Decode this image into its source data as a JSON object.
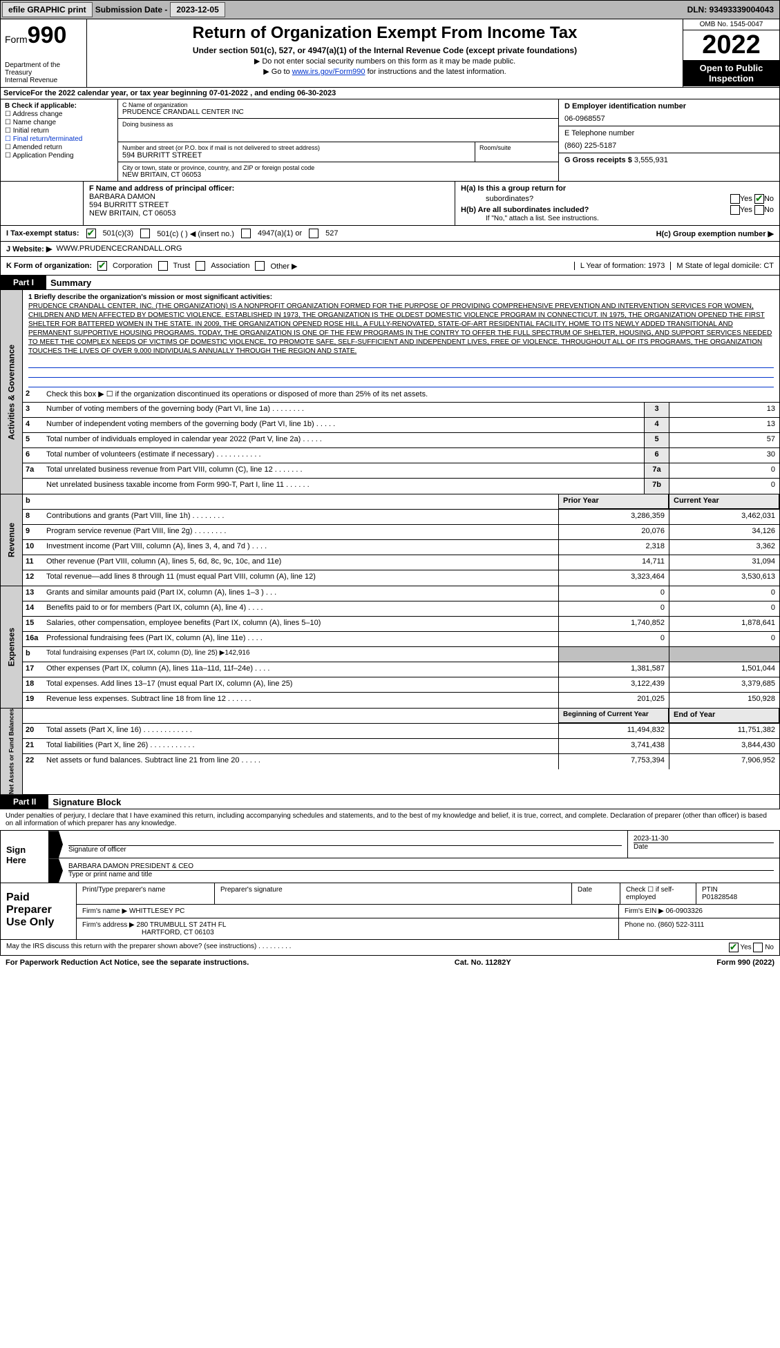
{
  "topbar": {
    "efile": "efile GRAPHIC print",
    "subdate_lbl": "Submission Date -",
    "subdate": "2023-12-05",
    "dln": "DLN: 93493339004043"
  },
  "header": {
    "form_word": "Form",
    "form_num": "990",
    "dept": "Department of the Treasury",
    "irs": "Internal Revenue",
    "title": "Return of Organization Exempt From Income Tax",
    "subtitle": "Under section 501(c), 527, or 4947(a)(1) of the Internal Revenue Code (except private foundations)",
    "note1": "▶ Do not enter social security numbers on this form as it may be made public.",
    "note2_pre": "▶ Go to ",
    "note2_link": "www.irs.gov/Form990",
    "note2_post": " for instructions and the latest information.",
    "omb": "OMB No. 1545-0047",
    "year": "2022",
    "inspect": "Open to Public Inspection"
  },
  "A": {
    "text": "For the 2022 calendar year, or tax year beginning 07-01-2022    , and ending 06-30-2023"
  },
  "B": {
    "title": "B Check if applicable:",
    "items": [
      "Address change",
      "Name change",
      "Initial return",
      "Final return/terminated",
      "Amended return",
      "Application Pending"
    ]
  },
  "C": {
    "name_lbl": "C Name of organization",
    "name": "PRUDENCE CRANDALL CENTER INC",
    "dba_lbl": "Doing business as",
    "addr_lbl": "Number and street (or P.O. box if mail is not delivered to street address)",
    "addr": "594 BURRITT STREET",
    "room_lbl": "Room/suite",
    "city_lbl": "City or town, state or province, country, and ZIP or foreign postal code",
    "city": "NEW BRITAIN, CT  06053"
  },
  "D": {
    "lbl": "D Employer identification number",
    "val": "06-0968557"
  },
  "E": {
    "lbl": "E Telephone number",
    "val": "(860) 225-5187"
  },
  "G": {
    "lbl": "G Gross receipts $",
    "val": "3,555,931"
  },
  "F": {
    "lbl": "F  Name and address of principal officer:",
    "name": "BARBARA DAMON",
    "addr1": "594 BURRITT STREET",
    "addr2": "NEW BRITAIN, CT  06053"
  },
  "H": {
    "a": "H(a)  Is this a group return for",
    "a2": "subordinates?",
    "b": "H(b)  Are all subordinates included?",
    "bnote": "If \"No,\" attach a list. See instructions.",
    "c": "H(c)  Group exemption number ▶",
    "yes": "Yes",
    "no": "No"
  },
  "I": {
    "lbl": "I    Tax-exempt status:",
    "o1": "501(c)(3)",
    "o2": "501(c) (  ) ◀ (insert no.)",
    "o3": "4947(a)(1) or",
    "o4": "527"
  },
  "J": {
    "lbl": "J   Website: ▶",
    "val": "WWW.PRUDENCECRANDALL.ORG"
  },
  "K": {
    "lbl": "K Form of organization:",
    "o1": "Corporation",
    "o2": "Trust",
    "o3": "Association",
    "o4": "Other ▶",
    "L": "L Year of formation: 1973",
    "M": "M State of legal domicile: CT"
  },
  "part1": {
    "tag": "Part I",
    "title": "Summary"
  },
  "mission_lbl": "1    Briefly describe the organization's mission or most significant activities:",
  "mission": "PRUDENCE CRANDALL CENTER, INC. (THE ORGANIZATION) IS A NONPROFIT ORGANIZATION FORMED FOR THE PURPOSE OF PROVIDING COMPREHENSIVE PREVENTION AND INTERVENTION SERVICES FOR WOMEN, CHILDREN AND MEN AFFECTED BY DOMESTIC VIOLENCE. ESTABLISHED IN 1973, THE ORGANIZATION IS THE OLDEST DOMESTIC VIOLENCE PROGRAM IN CONNECTICUT. IN 1975, THE ORGANIZATION OPENED THE FIRST SHELTER FOR BATTERED WOMEN IN THE STATE. IN 2009, THE ORGANIZATION OPENED ROSE HILL, A FULLY-RENOVATED, STATE-OF-ART RESIDENTIAL FACILITY, HOME TO ITS NEWLY ADDED TRANSITIONAL AND PERMANENT SUPPORTIVE HOUSING PROGRAMS. TODAY, THE ORGANIZATION IS ONE OF THE FEW PROGRAMS IN THE CONTRY TO OFFER THE FULL SPECTRUM OF SHELTER, HOUSING, AND SUPPORT SERVICES NEEDED TO MEET THE COMPLEX NEEDS OF VICTIMS OF DOMESTIC VIOLENCE, TO PROMOTE SAFE, SELF-SUFFICIENT AND INDEPENDENT LIVES, FREE OF VIOLENCE. THROUGHOUT ALL OF ITS PROGRAMS, THE ORGANIZATION TOUCHES THE LIVES OF OVER 9,000 INDIVIDUALS ANNUALLY THROUGH THE REGION AND STATE.",
  "lines_gov": [
    {
      "n": "2",
      "t": "Check this box ▶ ☐ if the organization discontinued its operations or disposed of more than 25% of its net assets."
    },
    {
      "n": "3",
      "t": "Number of voting members of the governing body (Part VI, line 1a)  .    .    .    .    .    .    .    .",
      "box": "3",
      "v": "13"
    },
    {
      "n": "4",
      "t": "Number of independent voting members of the governing body (Part VI, line 1b)    .    .    .    .    .",
      "box": "4",
      "v": "13"
    },
    {
      "n": "5",
      "t": "Total number of individuals employed in calendar year 2022 (Part V, line 2a)    .    .    .    .    .",
      "box": "5",
      "v": "57"
    },
    {
      "n": "6",
      "t": "Total number of volunteers (estimate if necessary)   .    .    .    .    .    .    .    .    .    .    .",
      "box": "6",
      "v": "30"
    },
    {
      "n": "7a",
      "t": "Total unrelated business revenue from Part VIII, column (C), line 12   .    .    .    .    .    .    .",
      "box": "7a",
      "v": "0"
    },
    {
      "n": "",
      "t": "Net unrelated business taxable income from Form 990-T, Part I, line 11   .    .    .    .    .    .",
      "box": "7b",
      "v": "0"
    }
  ],
  "col_hdr": {
    "b": "b",
    "prior": "Prior Year",
    "current": "Current Year"
  },
  "lines_rev": [
    {
      "n": "8",
      "t": "Contributions and grants (Part VIII, line 1h)   .    .    .    .    .    .    .    .",
      "p": "3,286,359",
      "c": "3,462,031"
    },
    {
      "n": "9",
      "t": "Program service revenue (Part VIII, line 2g)    .    .    .    .    .    .    .    .",
      "p": "20,076",
      "c": "34,126"
    },
    {
      "n": "10",
      "t": "Investment income (Part VIII, column (A), lines 3, 4, and 7d )   .    .    .    .",
      "p": "2,318",
      "c": "3,362"
    },
    {
      "n": "11",
      "t": "Other revenue (Part VIII, column (A), lines 5, 6d, 8c, 9c, 10c, and 11e)",
      "p": "14,711",
      "c": "31,094"
    },
    {
      "n": "12",
      "t": "Total revenue—add lines 8 through 11 (must equal Part VIII, column (A), line 12)",
      "p": "3,323,464",
      "c": "3,530,613"
    }
  ],
  "lines_exp": [
    {
      "n": "13",
      "t": "Grants and similar amounts paid (Part IX, column (A), lines 1–3 )  .    .    .",
      "p": "0",
      "c": "0"
    },
    {
      "n": "14",
      "t": "Benefits paid to or for members (Part IX, column (A), line 4)   .    .    .    .",
      "p": "0",
      "c": "0"
    },
    {
      "n": "15",
      "t": "Salaries, other compensation, employee benefits (Part IX, column (A), lines 5–10)",
      "p": "1,740,852",
      "c": "1,878,641"
    },
    {
      "n": "16a",
      "t": "Professional fundraising fees (Part IX, column (A), line 11e)   .    .    .    .",
      "p": "0",
      "c": "0"
    },
    {
      "n": "b",
      "t": "Total fundraising expenses (Part IX, column (D), line 25) ▶142,916",
      "shade": true
    },
    {
      "n": "17",
      "t": "Other expenses (Part IX, column (A), lines 11a–11d, 11f–24e)   .    .    .    .",
      "p": "1,381,587",
      "c": "1,501,044"
    },
    {
      "n": "18",
      "t": "Total expenses. Add lines 13–17 (must equal Part IX, column (A), line 25)",
      "p": "3,122,439",
      "c": "3,379,685"
    },
    {
      "n": "19",
      "t": "Revenue less expenses. Subtract line 18 from line 12   .    .    .    .    .    .",
      "p": "201,025",
      "c": "150,928"
    }
  ],
  "col_hdr2": {
    "prior": "Beginning of Current Year",
    "current": "End of Year"
  },
  "lines_net": [
    {
      "n": "20",
      "t": "Total assets (Part X, line 16)   .    .    .    .    .    .    .    .    .    .    .    .",
      "p": "11,494,832",
      "c": "11,751,382"
    },
    {
      "n": "21",
      "t": "Total liabilities (Part X, line 26)   .    .    .    .    .    .    .    .    .    .    .",
      "p": "3,741,438",
      "c": "3,844,430"
    },
    {
      "n": "22",
      "t": "Net assets or fund balances. Subtract line 21 from line 20   .    .    .    .    .",
      "p": "7,753,394",
      "c": "7,906,952"
    }
  ],
  "sidebars": {
    "gov": "Activities & Governance",
    "rev": "Revenue",
    "exp": "Expenses",
    "net": "Net Assets or Fund Balances"
  },
  "part2": {
    "tag": "Part II",
    "title": "Signature Block"
  },
  "sig_intro": "Under penalties of perjury, I declare that I have examined this return, including accompanying schedules and statements, and to the best of my knowledge and belief, it is true, correct, and complete. Declaration of preparer (other than officer) is based on all information of which preparer has any knowledge.",
  "sign": {
    "here": "Sign Here",
    "sig_lbl": "Signature of officer",
    "date_lbl": "Date",
    "date": "2023-11-30",
    "name": "BARBARA DAMON  PRESIDENT & CEO",
    "name_lbl": "Type or print name and title"
  },
  "paid": {
    "title": "Paid Preparer Use Only",
    "prep_name_lbl": "Print/Type preparer's name",
    "prep_sig_lbl": "Preparer's signature",
    "date_lbl": "Date",
    "check_lbl": "Check ☐ if self-employed",
    "ptin_lbl": "PTIN",
    "ptin": "P01828548",
    "firm_name_lbl": "Firm's name    ▶",
    "firm_name": "WHITTLESEY PC",
    "firm_ein_lbl": "Firm's EIN ▶",
    "firm_ein": "06-0903326",
    "firm_addr_lbl": "Firm's address ▶",
    "firm_addr1": "280 TRUMBULL ST 24TH FL",
    "firm_addr2": "HARTFORD, CT  06103",
    "phone_lbl": "Phone no.",
    "phone": "(860) 522-3111"
  },
  "discuss": {
    "text": "May the IRS discuss this return with the preparer shown above? (see instructions)    .    .    .    .    .    .    .    .    .",
    "yes": "Yes",
    "no": "No"
  },
  "bottom": {
    "l": "For Paperwork Reduction Act Notice, see the separate instructions.",
    "m": "Cat. No. 11282Y",
    "r": "Form 990 (2022)"
  }
}
